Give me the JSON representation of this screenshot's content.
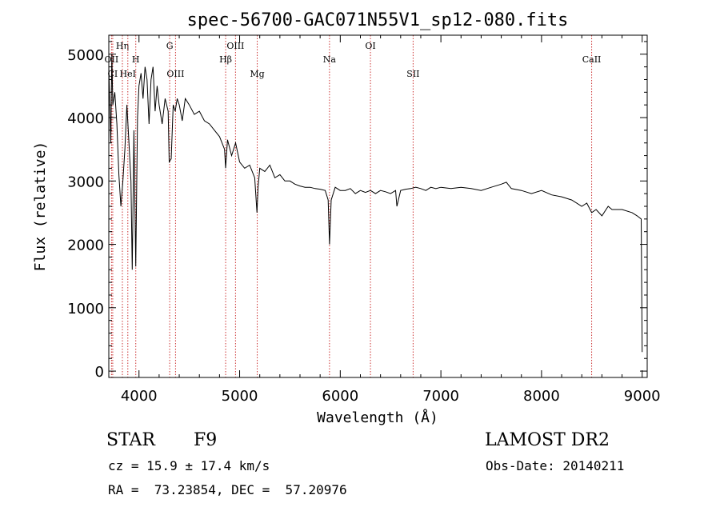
{
  "chart_data": {
    "type": "line",
    "title": "spec-56700-GAC071N55V1_sp12-080.fits",
    "xlabel": "Wavelength (Å)",
    "ylabel": "Flux (relative)",
    "xlim": [
      3700,
      9050
    ],
    "ylim": [
      -100,
      5300
    ],
    "xticks": [
      4000,
      5000,
      6000,
      7000,
      8000,
      9000
    ],
    "yticks": [
      0,
      1000,
      2000,
      3000,
      4000,
      5000
    ],
    "grid": false,
    "line_color": "#000000",
    "marker_color": "#cc3333",
    "series": [
      {
        "name": "flux",
        "x": [
          3700,
          3720,
          3730,
          3740,
          3760,
          3780,
          3800,
          3820,
          3840,
          3860,
          3880,
          3900,
          3920,
          3933,
          3950,
          3968,
          3985,
          4000,
          4020,
          4040,
          4060,
          4080,
          4100,
          4120,
          4140,
          4160,
          4180,
          4200,
          4230,
          4260,
          4290,
          4300,
          4320,
          4340,
          4360,
          4380,
          4400,
          4430,
          4460,
          4500,
          4550,
          4600,
          4650,
          4700,
          4750,
          4800,
          4850,
          4861,
          4880,
          4920,
          4960,
          5000,
          5050,
          5100,
          5150,
          5172,
          5183,
          5200,
          5250,
          5300,
          5350,
          5400,
          5450,
          5500,
          5550,
          5600,
          5650,
          5700,
          5750,
          5800,
          5850,
          5880,
          5893,
          5910,
          5950,
          6000,
          6050,
          6100,
          6150,
          6200,
          6250,
          6300,
          6350,
          6400,
          6450,
          6500,
          6550,
          6563,
          6600,
          6650,
          6700,
          6750,
          6800,
          6850,
          6900,
          6950,
          7000,
          7100,
          7200,
          7300,
          7400,
          7500,
          7600,
          7650,
          7700,
          7800,
          7900,
          8000,
          8100,
          8200,
          8300,
          8400,
          8450,
          8498,
          8542,
          8600,
          8662,
          8700,
          8800,
          8900,
          8950,
          8990,
          9000
        ],
        "y": [
          4800,
          3600,
          5000,
          4200,
          4400,
          3900,
          3100,
          2600,
          3000,
          3500,
          4200,
          3600,
          3000,
          1600,
          3800,
          1650,
          4000,
          4500,
          4700,
          4300,
          4800,
          4600,
          3900,
          4600,
          4800,
          4100,
          4500,
          4200,
          3900,
          4300,
          4100,
          3300,
          3350,
          4200,
          4100,
          4300,
          4200,
          3950,
          4300,
          4200,
          4050,
          4100,
          3950,
          3900,
          3800,
          3700,
          3500,
          3200,
          3650,
          3400,
          3600,
          3300,
          3200,
          3250,
          3050,
          2500,
          2900,
          3200,
          3150,
          3250,
          3050,
          3100,
          3000,
          3000,
          2950,
          2920,
          2900,
          2900,
          2880,
          2870,
          2850,
          2700,
          2000,
          2700,
          2900,
          2850,
          2850,
          2880,
          2800,
          2850,
          2820,
          2850,
          2800,
          2850,
          2830,
          2800,
          2850,
          2600,
          2850,
          2870,
          2880,
          2900,
          2880,
          2850,
          2900,
          2880,
          2900,
          2880,
          2900,
          2880,
          2850,
          2900,
          2950,
          2980,
          2880,
          2850,
          2800,
          2850,
          2780,
          2750,
          2700,
          2600,
          2650,
          2500,
          2550,
          2450,
          2600,
          2550,
          2550,
          2500,
          2450,
          2400,
          300
        ]
      }
    ],
    "lines": [
      {
        "label": "OII",
        "x": 3727,
        "row": 2
      },
      {
        "label": "CI",
        "x": 3739,
        "row": 3
      },
      {
        "label": "Hη",
        "x": 3835,
        "row": 1
      },
      {
        "label": "HeI",
        "x": 3889,
        "row": 3
      },
      {
        "label": "H",
        "x": 3968,
        "row": 2
      },
      {
        "label": "G",
        "x": 4305,
        "row": 1
      },
      {
        "label": "OIII",
        "x": 4363,
        "row": 3
      },
      {
        "label": "Hβ",
        "x": 4861,
        "row": 2
      },
      {
        "label": "OIII",
        "x": 4959,
        "row": 1
      },
      {
        "label": "Mg",
        "x": 5175,
        "row": 3
      },
      {
        "label": "Na",
        "x": 5893,
        "row": 2
      },
      {
        "label": "OI",
        "x": 6300,
        "row": 1
      },
      {
        "label": "SII",
        "x": 6724,
        "row": 3
      },
      {
        "label": "CaII",
        "x": 8498,
        "row": 2
      }
    ]
  },
  "info": {
    "class": "STAR",
    "subclass": "F9",
    "survey": "LAMOST DR2",
    "cz": "cz = 15.9 ± 17.4 km/s",
    "obs_date": "Obs-Date: 20140211",
    "radec": "RA =  73.23854, DEC =  57.20976"
  }
}
